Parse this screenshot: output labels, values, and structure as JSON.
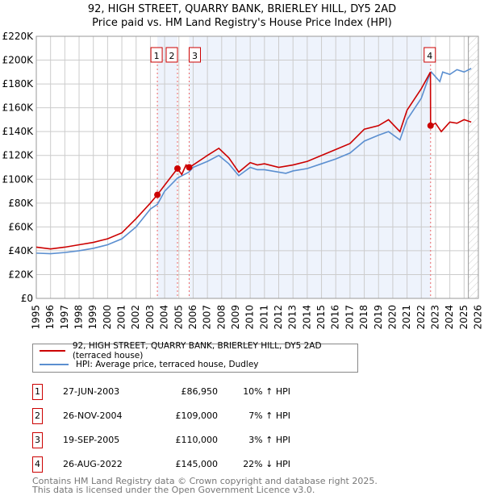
{
  "chart_data": {
    "type": "line",
    "title": "92, HIGH STREET, QUARRY BANK, BRIERLEY HILL, DY5 2AD",
    "subtitle": "Price paid vs. HM Land Registry's House Price Index (HPI)",
    "xlim": [
      1995,
      2026
    ],
    "ylim": [
      0,
      220000
    ],
    "x_ticks": [
      "1995",
      "1996",
      "1997",
      "1998",
      "1999",
      "2000",
      "2001",
      "2002",
      "2003",
      "2004",
      "2005",
      "2006",
      "2007",
      "2008",
      "2009",
      "2010",
      "2011",
      "2012",
      "2013",
      "2014",
      "2015",
      "2016",
      "2017",
      "2018",
      "2019",
      "2020",
      "2021",
      "2022",
      "2023",
      "2024",
      "2025",
      "2026"
    ],
    "y_ticks": [
      {
        "v": 0,
        "label": "£0"
      },
      {
        "v": 20000,
        "label": "£20K"
      },
      {
        "v": 40000,
        "label": "£40K"
      },
      {
        "v": 60000,
        "label": "£60K"
      },
      {
        "v": 80000,
        "label": "£80K"
      },
      {
        "v": 100000,
        "label": "£100K"
      },
      {
        "v": 120000,
        "label": "£120K"
      },
      {
        "v": 140000,
        "label": "£140K"
      },
      {
        "v": 160000,
        "label": "£160K"
      },
      {
        "v": 180000,
        "label": "£180K"
      },
      {
        "v": 200000,
        "label": "£200K"
      },
      {
        "v": 220000,
        "label": "£220K"
      }
    ],
    "grid": true,
    "series": [
      {
        "name": "92, HIGH STREET, QUARRY BANK, BRIERLEY HILL, DY5 2AD (terraced house)",
        "color": "#cc0000",
        "x": [
          1995,
          1996,
          1997,
          1998,
          1999,
          2000,
          2001,
          2002,
          2003,
          2003.49,
          2004,
          2004.9,
          2005.2,
          2005.5,
          2005.72,
          2006,
          2007,
          2007.8,
          2008.5,
          2009.2,
          2010,
          2010.5,
          2011,
          2012,
          2013,
          2014,
          2015,
          2016,
          2017,
          2018,
          2019,
          2019.7,
          2020.5,
          2021,
          2022,
          2022.64,
          2022.65,
          2023,
          2023.4,
          2024,
          2024.5,
          2025,
          2025.5
        ],
        "y": [
          43000,
          41500,
          43000,
          45000,
          47000,
          50000,
          55000,
          67000,
          80000,
          86950,
          95000,
          109000,
          104000,
          112000,
          110000,
          112000,
          120000,
          126000,
          118000,
          106000,
          114000,
          112000,
          113000,
          110000,
          112000,
          115000,
          120000,
          125000,
          130000,
          142000,
          145000,
          150000,
          140000,
          158000,
          176000,
          190000,
          145000,
          147000,
          140000,
          148000,
          147000,
          150000,
          148000
        ]
      },
      {
        "name": "HPI: Average price, terraced house, Dudley",
        "color": "#5b8fd0",
        "x": [
          1995,
          1996,
          1997,
          1998,
          1999,
          2000,
          2001,
          2002,
          2003,
          2003.5,
          2004,
          2004.9,
          2005.7,
          2006,
          2007,
          2007.8,
          2008.5,
          2009.2,
          2010,
          2010.5,
          2011,
          2012,
          2012.5,
          2013,
          2014,
          2015,
          2016,
          2017,
          2018,
          2019,
          2019.7,
          2020.5,
          2021,
          2022,
          2022.5,
          2022.7,
          2023.3,
          2023.5,
          2024,
          2024.5,
          2025,
          2025.5
        ],
        "y": [
          38000,
          37500,
          38500,
          40000,
          42000,
          45000,
          50000,
          60000,
          75000,
          79000,
          90000,
          101000,
          106000,
          110000,
          115000,
          120000,
          113000,
          103000,
          110000,
          108000,
          108000,
          106000,
          105000,
          107000,
          109000,
          113000,
          117000,
          122000,
          132000,
          137000,
          140000,
          133000,
          150000,
          168000,
          185000,
          190000,
          182000,
          190000,
          188000,
          192000,
          190000,
          193000
        ]
      }
    ],
    "sales": [
      {
        "n": "1",
        "x": 2003.49,
        "y": 86950,
        "date": "27-JUN-2003",
        "price": "£86,950",
        "hpi": "10% ↑ HPI"
      },
      {
        "n": "2",
        "x": 2004.9,
        "y": 109000,
        "date": "26-NOV-2004",
        "price": "£109,000",
        "hpi": "7% ↑ HPI"
      },
      {
        "n": "3",
        "x": 2005.72,
        "y": 110000,
        "date": "19-SEP-2005",
        "price": "£110,000",
        "hpi": "3% ↑ HPI"
      },
      {
        "n": "4",
        "x": 2022.65,
        "y": 145000,
        "date": "26-AUG-2022",
        "price": "£145,000",
        "hpi": "22% ↓ HPI"
      }
    ],
    "legend_placement": "bottom"
  },
  "title_line1": "92, HIGH STREET, QUARRY BANK, BRIERLEY HILL, DY5 2AD",
  "title_line2": "Price paid vs. HM Land Registry's House Price Index (HPI)",
  "legend": {
    "red": "92, HIGH STREET, QUARRY BANK, BRIERLEY HILL, DY5 2AD (terraced house)",
    "blue": "HPI: Average price, terraced house, Dudley"
  },
  "footer": {
    "line1": "Contains HM Land Registry data © Crown copyright and database right 2025.",
    "line2": "This data is licensed under the Open Government Licence v3.0."
  }
}
